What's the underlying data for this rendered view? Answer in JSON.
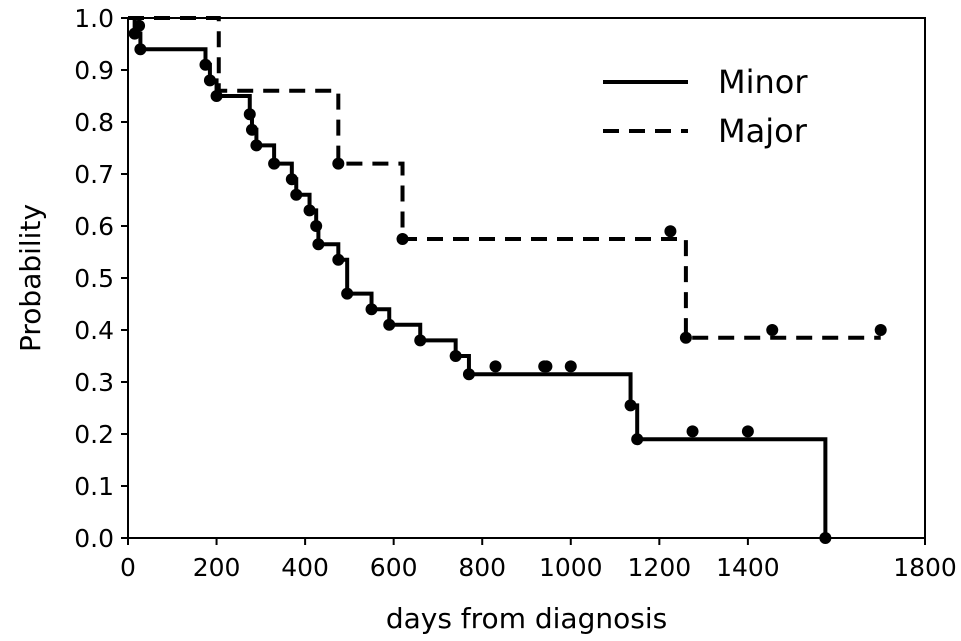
{
  "chart_data": {
    "type": "line",
    "title": "",
    "xlabel": "days from diagnosis",
    "ylabel": "Probability",
    "xlim": [
      0,
      1800
    ],
    "ylim": [
      0,
      1.0
    ],
    "x_ticks": [
      0,
      200,
      400,
      600,
      800,
      1000,
      1200,
      1400,
      1800
    ],
    "x_tick_labels": [
      "0",
      "200",
      "400",
      "600",
      "800",
      "1000",
      "1200",
      "1400",
      "1800"
    ],
    "y_ticks": [
      0.0,
      0.1,
      0.2,
      0.3,
      0.4,
      0.5,
      0.6,
      0.7,
      0.8,
      0.9,
      1.0
    ],
    "y_tick_labels": [
      "0.0",
      "0.1",
      "0.2",
      "0.3",
      "0.4",
      "0.5",
      "0.6",
      "0.7",
      "0.8",
      "0.9",
      "1.0"
    ],
    "grid": false,
    "legend_position": "top-right",
    "series": [
      {
        "name": "Minor",
        "style": "solid",
        "color": "#000000",
        "steps": [
          [
            0,
            1.0
          ],
          [
            15,
            0.97
          ],
          [
            28,
            0.94
          ],
          [
            175,
            0.91
          ],
          [
            185,
            0.88
          ],
          [
            200,
            0.85
          ],
          [
            240,
            0.85
          ],
          [
            275,
            0.815
          ],
          [
            280,
            0.785
          ],
          [
            290,
            0.755
          ],
          [
            330,
            0.72
          ],
          [
            370,
            0.69
          ],
          [
            380,
            0.66
          ],
          [
            410,
            0.63
          ],
          [
            425,
            0.6
          ],
          [
            430,
            0.565
          ],
          [
            475,
            0.535
          ],
          [
            495,
            0.47
          ],
          [
            550,
            0.44
          ],
          [
            590,
            0.41
          ],
          [
            660,
            0.38
          ],
          [
            740,
            0.35
          ],
          [
            770,
            0.315
          ],
          [
            1135,
            0.255
          ],
          [
            1150,
            0.19
          ],
          [
            1575,
            0.19
          ],
          [
            1575,
            0.0
          ]
        ],
        "censor_marks": [
          [
            25,
            0.985
          ],
          [
            15,
            0.97
          ],
          [
            28,
            0.94
          ],
          [
            175,
            0.91
          ],
          [
            185,
            0.88
          ],
          [
            200,
            0.85
          ],
          [
            275,
            0.815
          ],
          [
            280,
            0.785
          ],
          [
            290,
            0.755
          ],
          [
            330,
            0.72
          ],
          [
            370,
            0.69
          ],
          [
            380,
            0.66
          ],
          [
            410,
            0.63
          ],
          [
            425,
            0.6
          ],
          [
            430,
            0.565
          ],
          [
            475,
            0.535
          ],
          [
            495,
            0.47
          ],
          [
            550,
            0.44
          ],
          [
            590,
            0.41
          ],
          [
            660,
            0.38
          ],
          [
            740,
            0.35
          ],
          [
            770,
            0.315
          ],
          [
            830,
            0.33
          ],
          [
            940,
            0.33
          ],
          [
            945,
            0.33
          ],
          [
            1000,
            0.33
          ],
          [
            1135,
            0.255
          ],
          [
            1150,
            0.19
          ],
          [
            1275,
            0.205
          ],
          [
            1400,
            0.205
          ],
          [
            1575,
            0.0
          ]
        ]
      },
      {
        "name": "Major",
        "style": "dashed",
        "color": "#000000",
        "steps": [
          [
            0,
            1.0
          ],
          [
            205,
            1.0
          ],
          [
            205,
            0.86
          ],
          [
            475,
            0.86
          ],
          [
            475,
            0.72
          ],
          [
            620,
            0.72
          ],
          [
            620,
            0.575
          ],
          [
            1260,
            0.575
          ],
          [
            1260,
            0.385
          ],
          [
            1700,
            0.385
          ]
        ],
        "censor_marks": [
          [
            475,
            0.72
          ],
          [
            620,
            0.575
          ],
          [
            1225,
            0.59
          ],
          [
            1260,
            0.385
          ],
          [
            1455,
            0.4
          ],
          [
            1700,
            0.4
          ]
        ]
      }
    ]
  }
}
